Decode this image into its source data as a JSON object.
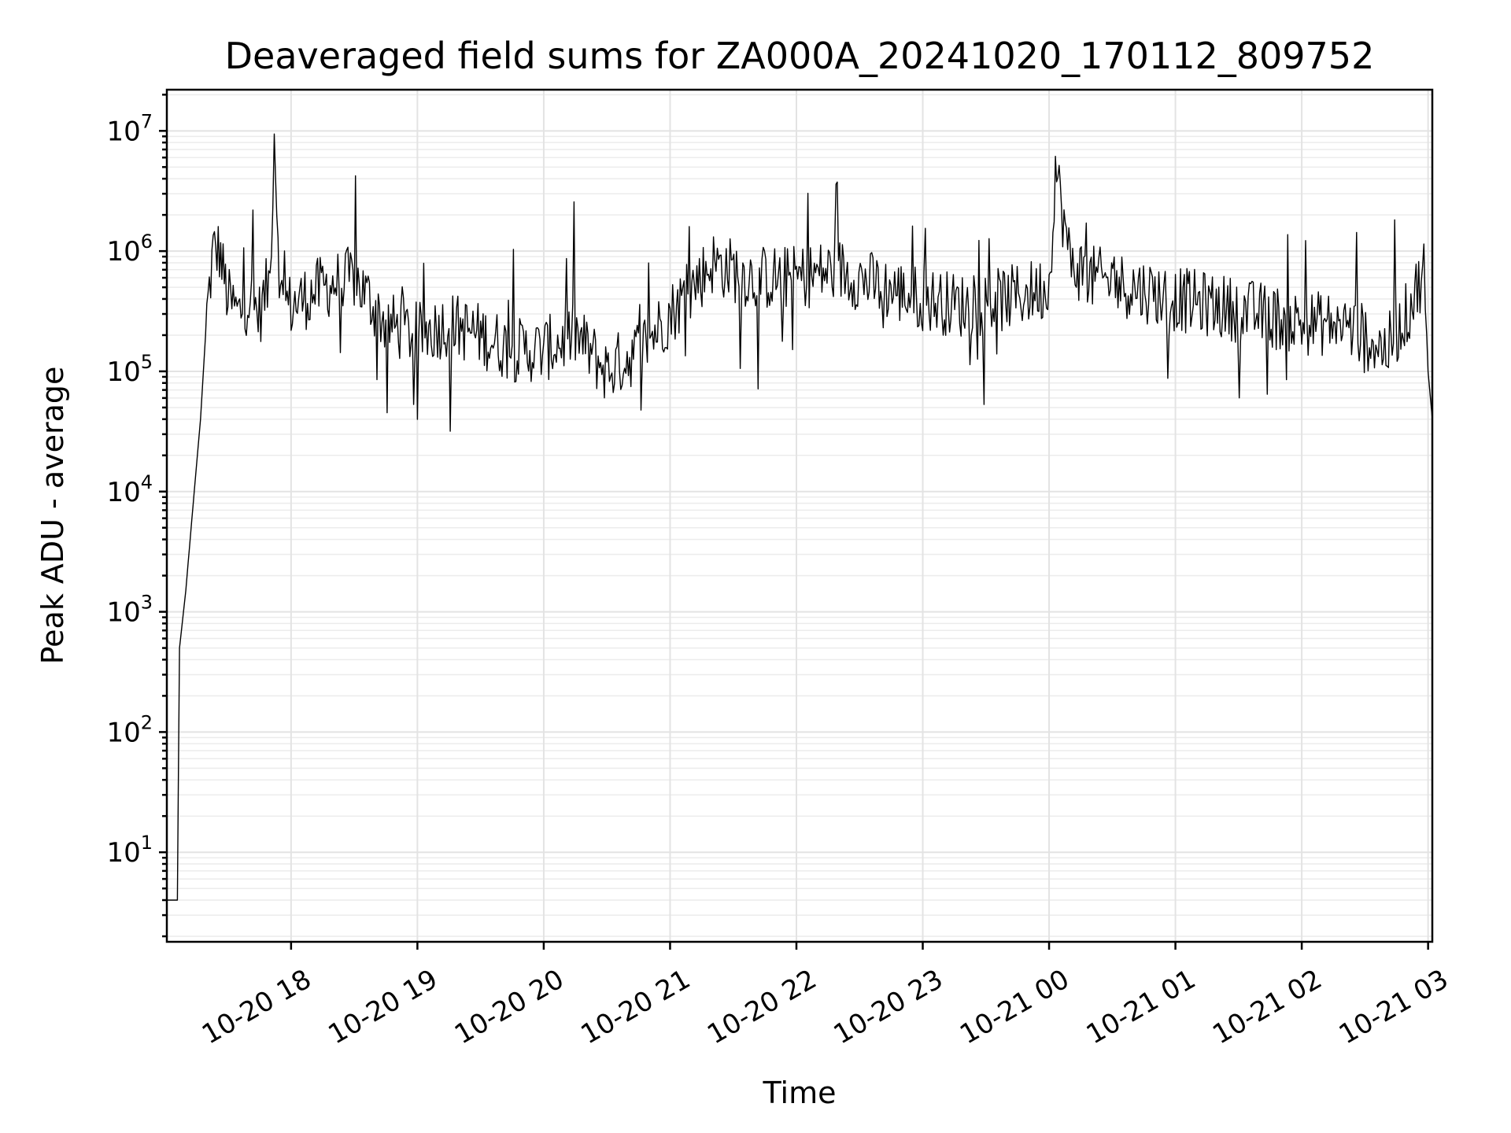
{
  "chart_data": {
    "type": "line",
    "title": "Deaveraged field sums for ZA000A_20241020_170112_809752",
    "xlabel": "Time",
    "ylabel": "Peak ADU - average",
    "y_scale": "log",
    "ylim": [
      1.8,
      22000000
    ],
    "xlim": [
      "2024-10-20 17:01",
      "2024-10-21 03:02"
    ],
    "grid": "major and minor",
    "legend": "none",
    "line_color": "#000000",
    "x_ticks": [
      {
        "value": "2024-10-20 18:00",
        "label": "10-20 18"
      },
      {
        "value": "2024-10-20 19:00",
        "label": "10-20 19"
      },
      {
        "value": "2024-10-20 20:00",
        "label": "10-20 20"
      },
      {
        "value": "2024-10-20 21:00",
        "label": "10-20 21"
      },
      {
        "value": "2024-10-20 22:00",
        "label": "10-20 22"
      },
      {
        "value": "2024-10-20 23:00",
        "label": "10-20 23"
      },
      {
        "value": "2024-10-21 00:00",
        "label": "10-21 00"
      },
      {
        "value": "2024-10-21 01:00",
        "label": "10-21 01"
      },
      {
        "value": "2024-10-21 02:00",
        "label": "10-21 02"
      },
      {
        "value": "2024-10-21 03:00",
        "label": "10-21 03"
      }
    ],
    "y_ticks": [
      {
        "value": 10,
        "base": "10",
        "exp": "1"
      },
      {
        "value": 100,
        "base": "10",
        "exp": "2"
      },
      {
        "value": 1000,
        "base": "10",
        "exp": "3"
      },
      {
        "value": 10000,
        "base": "10",
        "exp": "4"
      },
      {
        "value": 100000,
        "base": "10",
        "exp": "5"
      },
      {
        "value": 1000000,
        "base": "10",
        "exp": "6"
      },
      {
        "value": 10000000,
        "base": "10",
        "exp": "7"
      }
    ],
    "series": [
      {
        "x": [
          "2024-10-20 17:01",
          "2024-10-20 17:05",
          "2024-10-20 17:06",
          "2024-10-20 17:07",
          "2024-10-20 17:10",
          "2024-10-20 17:14",
          "2024-10-20 17:17",
          "2024-10-20 17:20",
          "2024-10-20 17:23",
          "2024-10-20 17:26",
          "2024-10-20 17:30",
          "2024-10-20 17:35",
          "2024-10-20 17:40",
          "2024-10-20 17:45",
          "2024-10-20 17:50",
          "2024-10-20 17:52",
          "2024-10-20 17:55",
          "2024-10-20 18:00",
          "2024-10-20 18:15",
          "2024-10-20 18:30",
          "2024-10-20 18:45",
          "2024-10-20 19:00",
          "2024-10-20 19:15",
          "2024-10-20 19:30",
          "2024-10-20 19:45",
          "2024-10-20 20:00",
          "2024-10-20 20:15",
          "2024-10-20 20:30",
          "2024-10-20 20:45",
          "2024-10-20 21:00",
          "2024-10-20 21:20",
          "2024-10-20 21:40",
          "2024-10-20 22:00",
          "2024-10-20 22:20",
          "2024-10-20 22:40",
          "2024-10-20 23:00",
          "2024-10-20 23:20",
          "2024-10-20 23:40",
          "2024-10-21 00:00",
          "2024-10-21 00:03",
          "2024-10-21 00:10",
          "2024-10-21 00:20",
          "2024-10-21 00:40",
          "2024-10-21 01:00",
          "2024-10-21 01:20",
          "2024-10-21 01:40",
          "2024-10-21 02:00",
          "2024-10-21 02:20",
          "2024-10-21 02:40",
          "2024-10-21 02:50",
          "2024-10-21 02:58",
          "2024-10-21 03:00",
          "2024-10-21 03:02"
        ],
        "y": [
          4,
          4,
          4,
          500,
          1500,
          10000,
          40000,
          300000,
          1000000,
          1000000,
          400000,
          300000,
          400000,
          300000,
          600000,
          10000000,
          400000,
          350000,
          500000,
          600000,
          250000,
          200000,
          250000,
          200000,
          150000,
          150000,
          200000,
          100000,
          150000,
          300000,
          800000,
          600000,
          600000,
          700000,
          500000,
          400000,
          350000,
          400000,
          500000,
          5000000,
          800000,
          600000,
          500000,
          400000,
          350000,
          300000,
          250000,
          250000,
          150000,
          300000,
          700000,
          100000,
          40000
        ]
      }
    ]
  }
}
